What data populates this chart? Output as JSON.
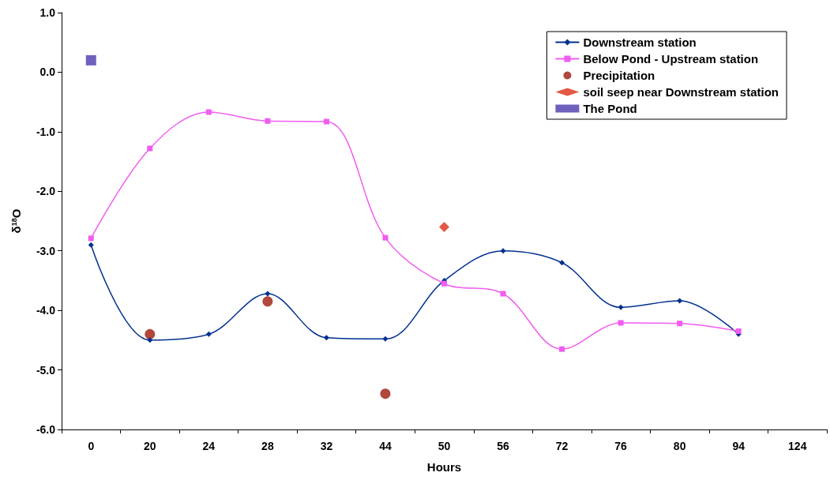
{
  "chart_data": {
    "type": "line",
    "xlabel": "Hours",
    "ylabel": "δ$^{18}$O",
    "categories": [
      "0",
      "20",
      "24",
      "28",
      "32",
      "44",
      "50",
      "56",
      "72",
      "76",
      "80",
      "94",
      "124"
    ],
    "ylim": [
      -6,
      1
    ],
    "yticks": [
      {
        "value": -6,
        "label": "-6.0"
      },
      {
        "value": -5,
        "label": "-5.0"
      },
      {
        "value": -4,
        "label": "-4.0"
      },
      {
        "value": -3,
        "label": "-3.0"
      },
      {
        "value": -2,
        "label": "-2.0"
      },
      {
        "value": -1,
        "label": "-1.0"
      },
      {
        "value": 0,
        "label": "0.0"
      },
      {
        "value": 1,
        "label": "1.0"
      }
    ],
    "grid": false,
    "legend": "top right",
    "series": [
      {
        "name": "Downstream station",
        "marker": "diamond",
        "color": "#00308f",
        "values": [
          -2.9,
          -4.5,
          -4.4,
          -3.72,
          -4.46,
          -4.48,
          -3.5,
          -3.0,
          -3.2,
          -3.95,
          -3.84,
          -4.4,
          null
        ]
      },
      {
        "name": "Below Pond - Upstream station",
        "marker": "square",
        "color": "#f05cf0",
        "values": [
          -2.79,
          -1.28,
          -0.67,
          -0.82,
          -0.83,
          -2.78,
          -3.55,
          -3.72,
          -4.65,
          -4.21,
          -4.22,
          -4.35,
          null
        ]
      },
      {
        "name": "Precipitation",
        "type": "scatter",
        "marker": "circle",
        "color": "#9c1a0e",
        "values": [
          null,
          -4.4,
          null,
          -3.85,
          null,
          -5.4,
          null,
          null,
          null,
          null,
          null,
          null,
          null
        ]
      },
      {
        "name": "soil seep near Downstream station",
        "type": "scatter",
        "marker": "diamond",
        "color": "#dc3018",
        "values": [
          null,
          null,
          null,
          null,
          null,
          null,
          -2.6,
          null,
          null,
          null,
          null,
          null,
          null
        ]
      },
      {
        "name": "The Pond",
        "type": "scatter",
        "marker": "square",
        "color": "#4a3aad",
        "values": [
          0.2,
          null,
          null,
          null,
          null,
          null,
          null,
          null,
          null,
          null,
          null,
          null,
          null
        ]
      }
    ]
  }
}
